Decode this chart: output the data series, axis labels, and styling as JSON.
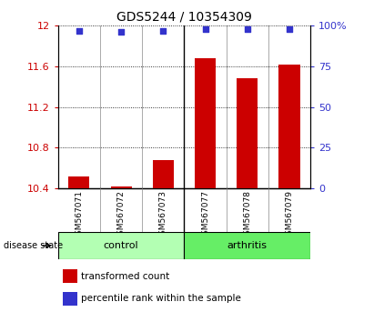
{
  "title": "GDS5244 / 10354309",
  "categories": [
    "GSM567071",
    "GSM567072",
    "GSM567073",
    "GSM567077",
    "GSM567078",
    "GSM567079"
  ],
  "bar_values": [
    10.52,
    10.42,
    10.68,
    11.68,
    11.48,
    11.62
  ],
  "bar_bottom": 10.4,
  "percentile_values": [
    97,
    96,
    97,
    98,
    98,
    98
  ],
  "bar_color": "#cc0000",
  "dot_color": "#3333cc",
  "ylim_left": [
    10.4,
    12.0
  ],
  "ylim_right": [
    0,
    100
  ],
  "yticks_left": [
    10.4,
    10.8,
    11.2,
    11.6,
    12.0
  ],
  "ytick_labels_left": [
    "10.4",
    "10.8",
    "11.2",
    "11.6",
    "12"
  ],
  "yticks_right": [
    0,
    25,
    50,
    75,
    100
  ],
  "ytick_labels_right": [
    "0",
    "25",
    "50",
    "75",
    "100%"
  ],
  "group_labels": [
    "control",
    "arthritis"
  ],
  "group_color_control": "#b3ffb3",
  "group_color_arthritis": "#66ee66",
  "disease_state_label": "disease state",
  "legend_bar_label": "transformed count",
  "legend_dot_label": "percentile rank within the sample",
  "background_gray": "#c8c8c8",
  "title_fontsize": 10,
  "tick_fontsize": 8,
  "cat_fontsize": 6.5
}
